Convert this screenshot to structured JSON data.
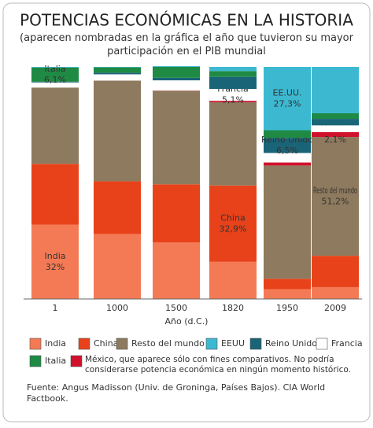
{
  "chart_data": {
    "type": "stacked_bar",
    "title": "POTENCIAS ECONÓMICAS EN LA HISTORIA",
    "subtitle": "(aparecen nombradas en la gráfica el año que tuvieron su mayor participación en el PIB mundial",
    "xlabel": "Año (d.C.)",
    "source": "Fuente: Angus Madisson (Univ. de Groninga, Países Bajos). CIA World Factbook.",
    "categories": [
      "1",
      "1000",
      "1500",
      "1820",
      "1950",
      "2009"
    ],
    "ylim": [
      0,
      100
    ],
    "series": [
      {
        "name": "India",
        "color": "#f47a55",
        "values": [
          32,
          28,
          24.4,
          16,
          4.2,
          5.1
        ],
        "value_labels": [
          "32%",
          null,
          null,
          null,
          null,
          null
        ]
      },
      {
        "name": "China",
        "color": "#e8421a",
        "values": [
          26.2,
          22.7,
          25,
          32.9,
          4.5,
          13.5
        ],
        "value_labels": [
          null,
          null,
          null,
          "32,9%",
          null,
          null
        ]
      },
      {
        "name": "Resto del mundo",
        "color": "#8e7a5e",
        "values": [
          32.9,
          43.4,
          40.3,
          35.9,
          48.8,
          51.2
        ],
        "value_labels": [
          null,
          null,
          null,
          null,
          null,
          "51,2%"
        ]
      },
      {
        "name": "México, que aparece sólo con fines comparativos. No podría considerarse potencia económica en ningún momento histórico.",
        "bar_label": "México",
        "color": "#d0112b",
        "values": [
          0,
          0,
          0.1,
          0.6,
          1.3,
          2.1
        ],
        "value_labels": [
          null,
          null,
          null,
          null,
          null,
          "2,1%"
        ]
      },
      {
        "name": "Francia",
        "color": "#ffffff",
        "values": [
          2.2,
          2.7,
          4.4,
          5.1,
          4.1,
          2.9
        ],
        "value_labels": [
          null,
          null,
          null,
          "5,1%",
          null,
          null
        ]
      },
      {
        "name": "Reino Unido",
        "color": "#1a6478",
        "values": [
          0.3,
          0.7,
          1.1,
          5.2,
          6.5,
          2.8
        ],
        "value_labels": [
          null,
          null,
          null,
          null,
          "6,5%",
          null
        ]
      },
      {
        "name": "Italia",
        "color": "#1e8a44",
        "values": [
          6.1,
          2.3,
          4.7,
          2.5,
          3.3,
          2.4
        ],
        "value_labels": [
          "6,1%",
          null,
          null,
          null,
          null,
          null
        ]
      },
      {
        "name": "EEUU",
        "bar_label": "EE.UU.",
        "color": "#3cb9d1",
        "values": [
          0.3,
          0.2,
          0.3,
          1.8,
          27.3,
          20
        ],
        "value_labels": [
          null,
          null,
          null,
          null,
          "27,3%",
          null
        ]
      }
    ]
  }
}
